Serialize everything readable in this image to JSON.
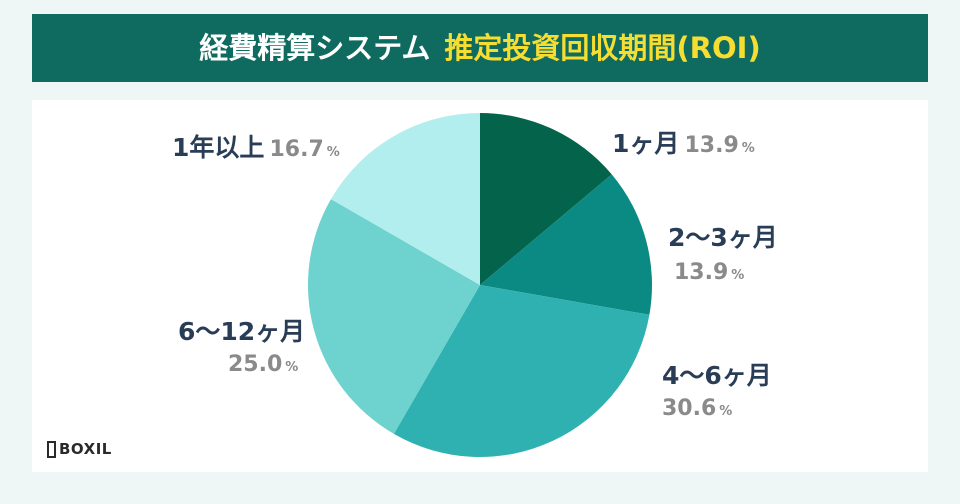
{
  "header": {
    "title_part1": "経費精算システム",
    "title_part2": "推定投資回収期間(ROI)"
  },
  "colors": {
    "banner_bg": "#0f6a5f",
    "title_highlight": "#f5dd32",
    "category_text": "#2a3d56",
    "value_text": "#8a8a8a"
  },
  "chart_data": {
    "type": "pie",
    "start": "12 o'clock",
    "direction": "clockwise",
    "unit": "%",
    "slices": [
      {
        "label": "1ヶ月",
        "value": 13.9,
        "color": "#04644b"
      },
      {
        "label": "2〜3ヶ月",
        "value": 13.9,
        "color": "#0b8a84"
      },
      {
        "label": "4〜6ヶ月",
        "value": 30.6,
        "color": "#30b1b1"
      },
      {
        "label": "6〜12ヶ月",
        "value": 25.0,
        "color": "#6ed2cf"
      },
      {
        "label": "1年以上",
        "value": 16.7,
        "color": "#b1eeed"
      }
    ],
    "value_texts": [
      "13.9",
      "13.9",
      "30.6",
      "25.0",
      "16.7"
    ]
  },
  "logo": {
    "text": "BOXIL"
  }
}
